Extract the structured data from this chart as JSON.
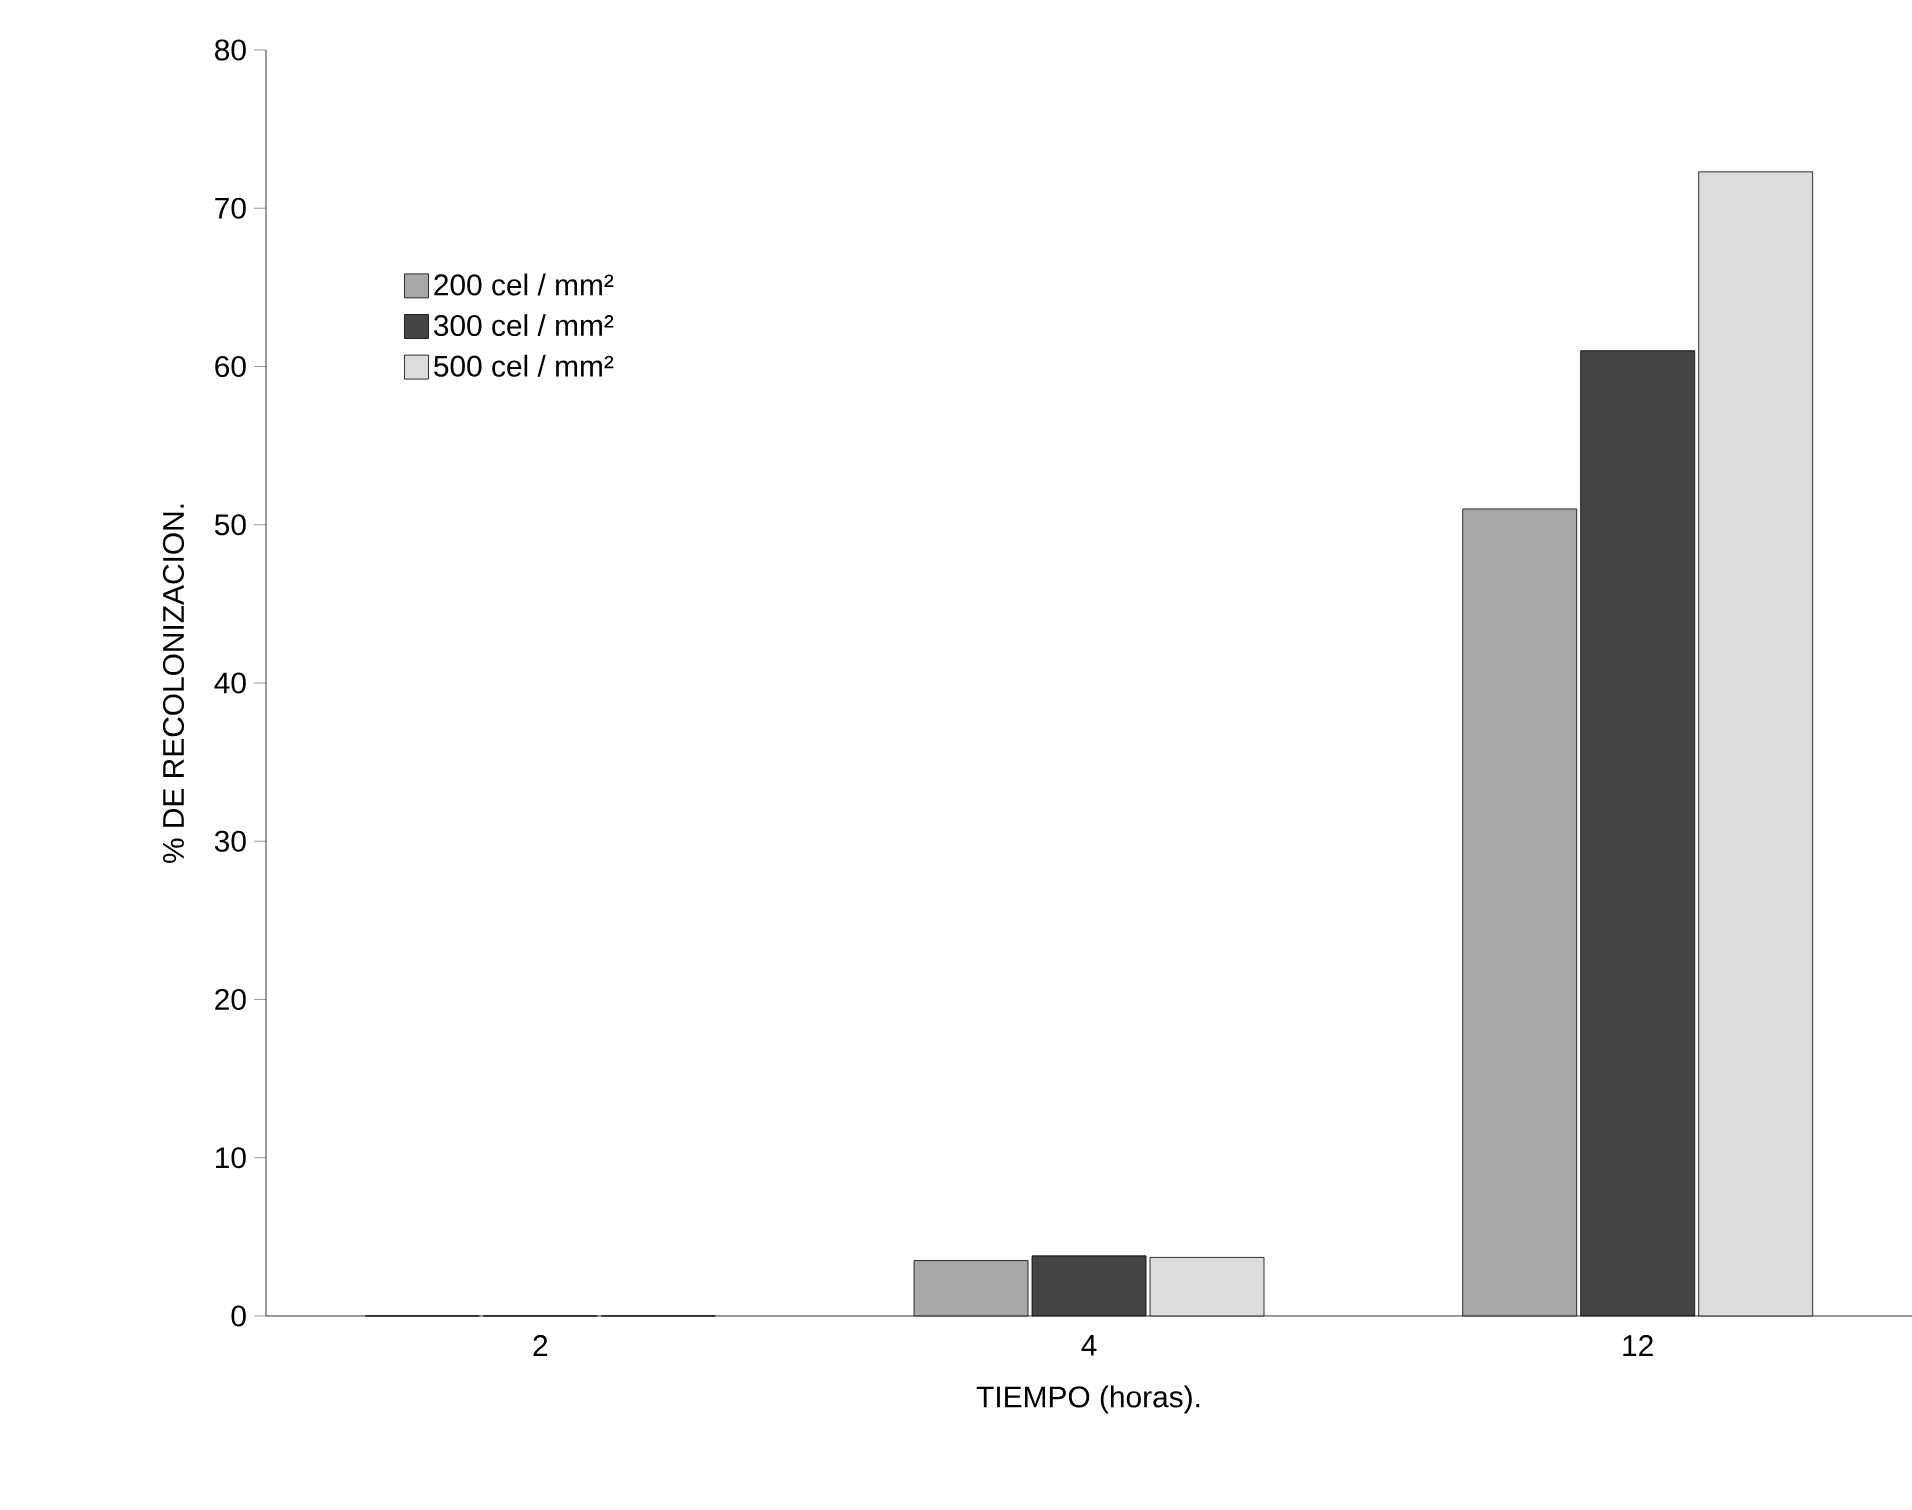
{
  "chart_data": {
    "type": "bar",
    "xlabel": "TIEMPO (horas).",
    "ylabel": "% DE RECOLONIZACION.",
    "categories": [
      "2",
      "4",
      "12"
    ],
    "series": [
      {
        "name": "200 cel / mm²",
        "color": "#a8a8a8",
        "values": [
          0,
          3.5,
          51
        ]
      },
      {
        "name": "300 cel / mm²",
        "color": "#444444",
        "values": [
          0,
          3.8,
          61
        ]
      },
      {
        "name": "500 cel / mm²",
        "color": "#dcdcdc",
        "values": [
          0,
          3.7,
          72.3
        ]
      }
    ],
    "ylim": [
      0,
      80
    ],
    "yticks": [
      0,
      10,
      20,
      30,
      40,
      50,
      60,
      70,
      80
    ],
    "grid": false,
    "legend": "top left"
  }
}
